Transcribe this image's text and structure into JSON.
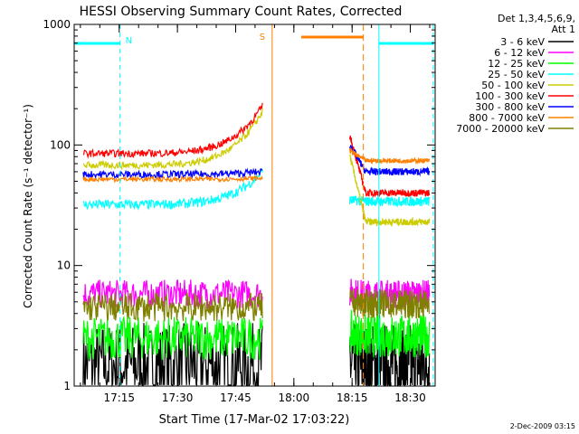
{
  "chart_data": {
    "type": "line",
    "title": "HESSI Observing Summary Count Rates, Corrected",
    "xlabel": "Start Time (17-Mar-02 17:03:22)",
    "ylabel": "Corrected Count Rate (s⁻¹ detector⁻¹)",
    "y_scale": "log",
    "ylim": [
      1,
      1000
    ],
    "xlim_minutes": [
      0,
      93
    ],
    "y_ticks": [
      1,
      10,
      100,
      1000
    ],
    "y_tick_labels": [
      "1",
      "10",
      "100",
      "1000"
    ],
    "x_ticks_minutes": [
      11.6,
      26.6,
      41.6,
      56.6,
      71.6,
      86.6
    ],
    "x_tick_labels": [
      "17:15",
      "17:30",
      "17:45",
      "18:00",
      "18:15",
      "18:30"
    ],
    "grid": false,
    "legend_position": "right",
    "legend_title": "Det 1,3,4,5,6,9,",
    "legend_subtitle": "Att 1",
    "series": [
      {
        "name": "3 - 6 keV",
        "color": "#000000",
        "seg1": [
          1.5,
          1.5
        ],
        "seg2": [
          1.5,
          1.5
        ],
        "noise": 0.35
      },
      {
        "name": "6 - 12 keV",
        "color": "#ff00ff",
        "seg1": [
          5.8,
          5.8
        ],
        "seg2": [
          6.0,
          5.8
        ],
        "noise": 0.12
      },
      {
        "name": "12 - 25 keV",
        "color": "#00ff00",
        "seg1": [
          2.5,
          2.5
        ],
        "seg2": [
          2.8,
          2.6
        ],
        "noise": 0.18
      },
      {
        "name": "25 - 50 keV",
        "color": "#00ffff",
        "seg1": [
          32,
          60
        ],
        "seg2": [
          35,
          34
        ],
        "noise": 0.04
      },
      {
        "name": "50 - 100 keV",
        "color": "#cccc00",
        "seg1": [
          68,
          190
        ],
        "seg2": [
          82,
          23
        ],
        "noise": 0.03
      },
      {
        "name": "100 - 300 keV",
        "color": "#ff0000",
        "seg1": [
          85,
          210
        ],
        "seg2": [
          120,
          40
        ],
        "noise": 0.03
      },
      {
        "name": "300 - 800 keV",
        "color": "#0000ff",
        "seg1": [
          57,
          60
        ],
        "seg2": [
          100,
          60
        ],
        "noise": 0.03
      },
      {
        "name": "800 - 7000 keV",
        "color": "#ff8000",
        "seg1": [
          52,
          53
        ],
        "seg2": [
          90,
          74
        ],
        "noise": 0.02
      },
      {
        "name": "7000 - 20000 keV",
        "color": "#808000",
        "seg1": [
          4.5,
          4.5
        ],
        "seg2": [
          5.0,
          4.8
        ],
        "noise": 0.12
      }
    ],
    "annotations": [
      {
        "label": "N",
        "color": "#00ffff"
      },
      {
        "label": "S",
        "color": "#ff8000"
      }
    ],
    "footer_date": "2-Dec-2009 03:15"
  }
}
